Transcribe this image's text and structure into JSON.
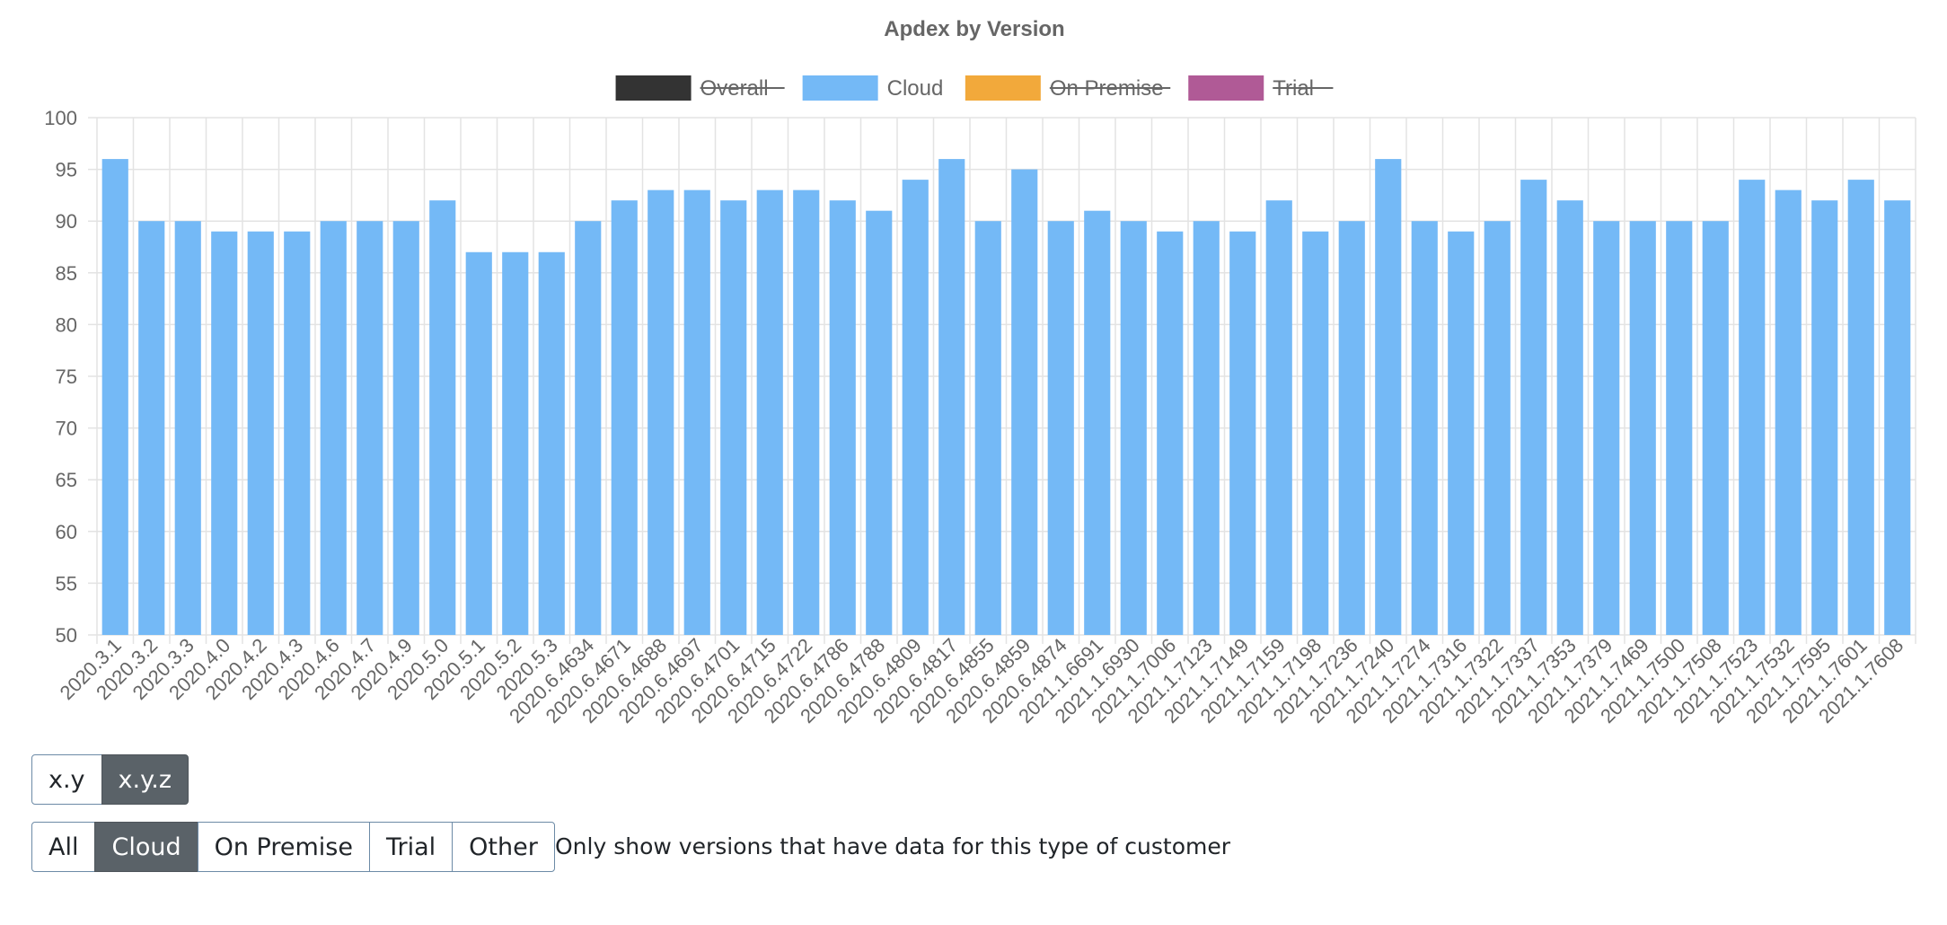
{
  "chart_data": {
    "type": "bar",
    "title": "Apdex by Version",
    "legend": {
      "placement": "top-center",
      "items": [
        {
          "label": "Overall",
          "color": "#333333",
          "hidden": true
        },
        {
          "label": "Cloud",
          "color": "#74b9f6",
          "hidden": false
        },
        {
          "label": "On Premise",
          "color": "#f2a93b",
          "hidden": true
        },
        {
          "label": "Trial",
          "color": "#b05a96",
          "hidden": true
        }
      ]
    },
    "ylim": [
      50,
      100
    ],
    "yticks": [
      50,
      55,
      60,
      65,
      70,
      75,
      80,
      85,
      90,
      95,
      100
    ],
    "grid": true,
    "categories": [
      "2020.3.1",
      "2020.3.2",
      "2020.3.3",
      "2020.4.0",
      "2020.4.2",
      "2020.4.3",
      "2020.4.6",
      "2020.4.7",
      "2020.4.9",
      "2020.5.0",
      "2020.5.1",
      "2020.5.2",
      "2020.5.3",
      "2020.6.4634",
      "2020.6.4671",
      "2020.6.4688",
      "2020.6.4697",
      "2020.6.4701",
      "2020.6.4715",
      "2020.6.4722",
      "2020.6.4786",
      "2020.6.4788",
      "2020.6.4809",
      "2020.6.4817",
      "2020.6.4855",
      "2020.6.4859",
      "2020.6.4874",
      "2021.1.6691",
      "2021.1.6930",
      "2021.1.7006",
      "2021.1.7123",
      "2021.1.7149",
      "2021.1.7159",
      "2021.1.7198",
      "2021.1.7236",
      "2021.1.7240",
      "2021.1.7274",
      "2021.1.7316",
      "2021.1.7322",
      "2021.1.7337",
      "2021.1.7353",
      "2021.1.7379",
      "2021.1.7469",
      "2021.1.7500",
      "2021.1.7508",
      "2021.1.7523",
      "2021.1.7532",
      "2021.1.7595",
      "2021.1.7601",
      "2021.1.7608"
    ],
    "series": [
      {
        "name": "Cloud",
        "color": "#74b9f6",
        "values": [
          96,
          90,
          90,
          89,
          89,
          89,
          90,
          90,
          90,
          92,
          87,
          87,
          87,
          90,
          92,
          93,
          93,
          92,
          93,
          93,
          92,
          91,
          94,
          96,
          90,
          95,
          90,
          91,
          90,
          89,
          90,
          89,
          92,
          89,
          90,
          96,
          90,
          89,
          90,
          94,
          92,
          90,
          90,
          90,
          90,
          94,
          93,
          92,
          94,
          92
        ]
      }
    ]
  },
  "controls": {
    "granularity": [
      {
        "label": "x.y",
        "active": false
      },
      {
        "label": "x.y.z",
        "active": true
      }
    ],
    "customer_type": [
      {
        "label": "All",
        "active": false
      },
      {
        "label": "Cloud",
        "active": true
      },
      {
        "label": "On Premise",
        "active": false
      },
      {
        "label": "Trial",
        "active": false
      },
      {
        "label": "Other",
        "active": false
      }
    ],
    "filter_note": "Only show versions that have data for this type of customer"
  }
}
